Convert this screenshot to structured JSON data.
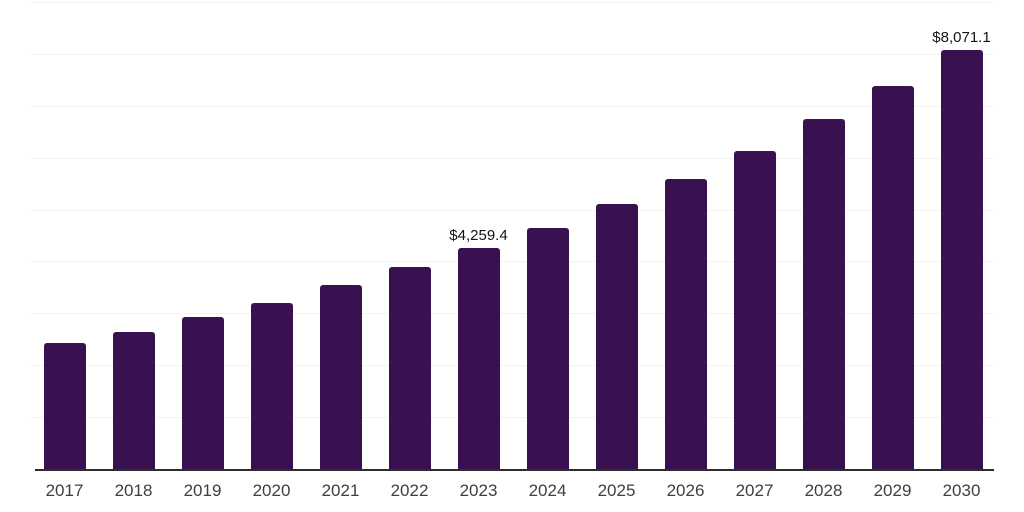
{
  "chart_data": {
    "type": "bar",
    "title": "",
    "xlabel": "",
    "ylabel": "",
    "categories": [
      "2017",
      "2018",
      "2019",
      "2020",
      "2021",
      "2022",
      "2023",
      "2024",
      "2025",
      "2026",
      "2027",
      "2028",
      "2029",
      "2030"
    ],
    "series": [
      {
        "name": "market-value-usd",
        "values": [
          2420,
          2635,
          2920,
          3190,
          3540,
          3885,
          4259.4,
          4645,
          5105,
          5590,
          6125,
          6745,
          7380,
          8071.1
        ]
      }
    ],
    "data_labels": [
      {
        "category": "2023",
        "text": "$4,259.4"
      },
      {
        "category": "2030",
        "text": "$8,071.1"
      }
    ],
    "ylim": [
      0,
      9000
    ],
    "grid_step": 1000,
    "grid": "horizontal-only",
    "legend": "none",
    "y_axis_labels": "none",
    "colors": {
      "bar": "#3a1150",
      "gridline": "#f2f2f2",
      "axis_line": "#2d2d2d",
      "tick_label": "#3f3f3f",
      "data_label": "#141414",
      "background": "#ffffff"
    }
  }
}
